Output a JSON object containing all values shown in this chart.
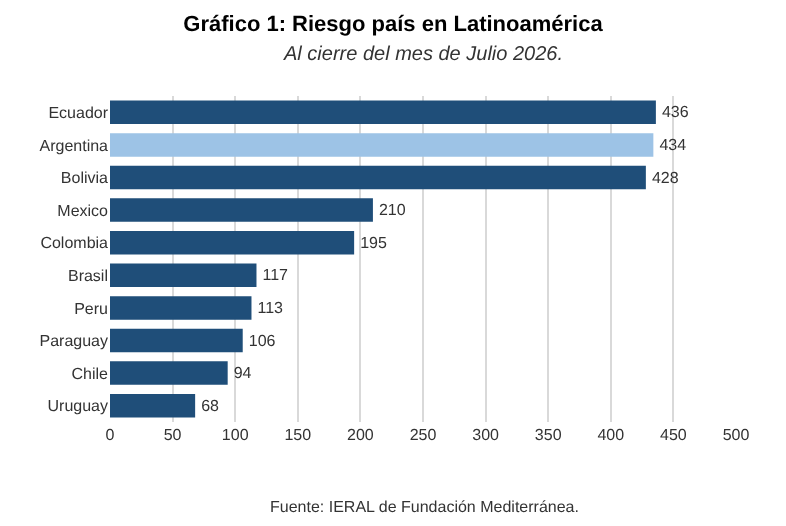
{
  "chart_data": {
    "type": "bar",
    "orientation": "horizontal",
    "title": "Gráfico 1: Riesgo país en Latinoamérica",
    "subtitle": "Al cierre del mes de Julio 2026.",
    "categories": [
      "Ecuador",
      "Argentina",
      "Bolivia",
      "Mexico",
      "Colombia",
      "Brasil",
      "Peru",
      "Paraguay",
      "Chile",
      "Uruguay"
    ],
    "values": [
      436,
      434,
      428,
      210,
      195,
      117,
      113,
      106,
      94,
      68
    ],
    "colors": [
      "#1f4e79",
      "#9dc3e6",
      "#1f4e79",
      "#1f4e79",
      "#1f4e79",
      "#1f4e79",
      "#1f4e79",
      "#1f4e79",
      "#1f4e79",
      "#1f4e79"
    ],
    "xlim": [
      0,
      500
    ],
    "xticks": [
      0,
      50,
      100,
      150,
      200,
      250,
      300,
      350,
      400,
      450,
      500
    ],
    "grid": "x",
    "data_labels": true,
    "annotations": [
      "Fuente: IERAL de Fundación Mediterránea."
    ]
  }
}
